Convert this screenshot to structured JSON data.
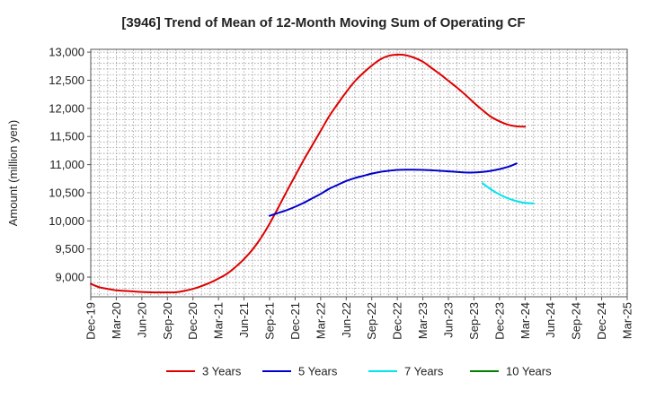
{
  "chart_data": {
    "type": "line",
    "title": "[3946]  Trend of Mean of 12-Month Moving Sum of Operating CF",
    "xlabel": "",
    "ylabel": "Amount (million yen)",
    "ylim": [
      8650,
      13050
    ],
    "yticks": [
      9000,
      9500,
      10000,
      10500,
      11000,
      11500,
      12000,
      12500,
      13000
    ],
    "ytick_labels": [
      "9,000",
      "9,500",
      "10,000",
      "10,500",
      "11,000",
      "11,500",
      "12,000",
      "12,500",
      "13,000"
    ],
    "x_months_total": 63,
    "xtick_labels": [
      "Dec-19",
      "Mar-20",
      "Jun-20",
      "Sep-20",
      "Dec-20",
      "Mar-21",
      "Jun-21",
      "Sep-21",
      "Dec-21",
      "Mar-22",
      "Jun-22",
      "Sep-22",
      "Dec-22",
      "Mar-23",
      "Jun-23",
      "Sep-23",
      "Dec-23",
      "Mar-24",
      "Jun-24",
      "Sep-24",
      "Dec-24",
      "Mar-25"
    ],
    "grid": true,
    "legend_position": "bottom",
    "series": [
      {
        "name": "3 Years",
        "color": "#dd0000",
        "start_month": 0,
        "values": [
          8880,
          8820,
          8790,
          8765,
          8755,
          8745,
          8735,
          8730,
          8728,
          8727,
          8730,
          8755,
          8790,
          8840,
          8900,
          8975,
          9060,
          9180,
          9320,
          9490,
          9700,
          9950,
          10230,
          10520,
          10800,
          11080,
          11340,
          11600,
          11860,
          12080,
          12290,
          12480,
          12630,
          12760,
          12870,
          12935,
          12955,
          12945,
          12900,
          12830,
          12720,
          12610,
          12490,
          12370,
          12240,
          12100,
          11970,
          11850,
          11770,
          11710,
          11680,
          11675
        ]
      },
      {
        "name": "5 Years",
        "color": "#0000cc",
        "start_month": 21,
        "values": [
          10090,
          10140,
          10190,
          10250,
          10320,
          10400,
          10480,
          10570,
          10640,
          10710,
          10760,
          10800,
          10840,
          10870,
          10890,
          10905,
          10910,
          10910,
          10905,
          10900,
          10890,
          10880,
          10870,
          10860,
          10860,
          10870,
          10890,
          10920,
          10960,
          11020
        ]
      },
      {
        "name": "7 Years",
        "color": "#00e5ee",
        "start_month": 46,
        "values": [
          10670,
          10560,
          10470,
          10400,
          10350,
          10320,
          10310
        ]
      },
      {
        "name": "10 Years",
        "color": "#008000",
        "start_month": 0,
        "values": []
      }
    ]
  }
}
